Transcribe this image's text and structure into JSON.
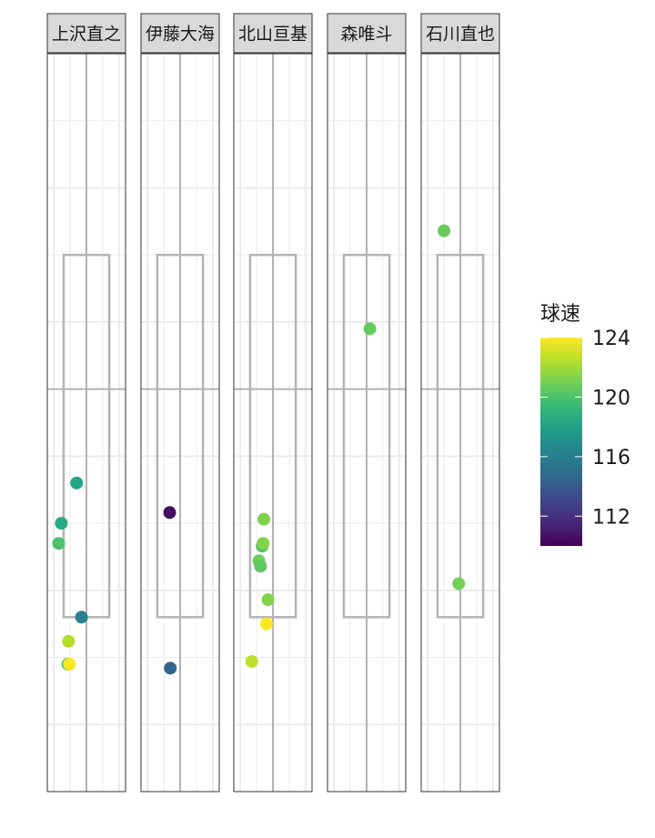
{
  "chart_data": {
    "type": "scatter",
    "facets": [
      {
        "name": "上沢直之",
        "points": [
          {
            "x": -0.3,
            "y": 1.8,
            "speed": 118.2
          },
          {
            "x": -0.77,
            "y": 1.5,
            "speed": 118.5
          },
          {
            "x": -0.85,
            "y": 1.35,
            "speed": 120.0
          },
          {
            "x": -0.15,
            "y": 0.8,
            "speed": 116.2
          },
          {
            "x": -0.55,
            "y": 0.62,
            "speed": 122.4
          },
          {
            "x": -0.57,
            "y": 0.45,
            "speed": 120.3
          },
          {
            "x": -0.52,
            "y": 0.45,
            "speed": 124.0
          }
        ]
      },
      {
        "name": "伊藤大海",
        "points": [
          {
            "x": -0.32,
            "y": 1.58,
            "speed": 110.5
          },
          {
            "x": -0.3,
            "y": 0.42,
            "speed": 114.5
          }
        ]
      },
      {
        "name": "北山亘基",
        "points": [
          {
            "x": -0.28,
            "y": 1.53,
            "speed": 121.3
          },
          {
            "x": -0.33,
            "y": 1.33,
            "speed": 120.2
          },
          {
            "x": -0.3,
            "y": 1.35,
            "speed": 121.3
          },
          {
            "x": -0.43,
            "y": 1.22,
            "speed": 120.8
          },
          {
            "x": -0.38,
            "y": 1.18,
            "speed": 120.4
          },
          {
            "x": -0.15,
            "y": 0.93,
            "speed": 121.3
          },
          {
            "x": -0.2,
            "y": 0.75,
            "speed": 124.0
          },
          {
            "x": -0.65,
            "y": 0.47,
            "speed": 122.6
          }
        ]
      },
      {
        "name": "森唯斗",
        "points": [
          {
            "x": 0.1,
            "y": 2.95,
            "speed": 120.6
          }
        ]
      },
      {
        "name": "石川直也",
        "points": [
          {
            "x": -0.5,
            "y": 3.68,
            "speed": 120.7
          },
          {
            "x": -0.05,
            "y": 1.05,
            "speed": 121.0
          }
        ]
      }
    ],
    "axes": {
      "xlim": [
        -1.2,
        1.2
      ],
      "ylim": [
        -0.5,
        5.0
      ]
    },
    "strike_zone": {
      "x": [
        -0.7,
        0.7
      ],
      "y": [
        0.8,
        3.5
      ]
    },
    "reference_lines": {
      "x": 0,
      "y": 2.5
    },
    "color_scale": {
      "title": "球速",
      "palette": "viridis",
      "range": [
        110,
        124
      ],
      "breaks": [
        "124",
        "120",
        "116",
        "112"
      ],
      "break_values": [
        124,
        120,
        116,
        112
      ]
    },
    "grid": true,
    "legend": "right"
  }
}
